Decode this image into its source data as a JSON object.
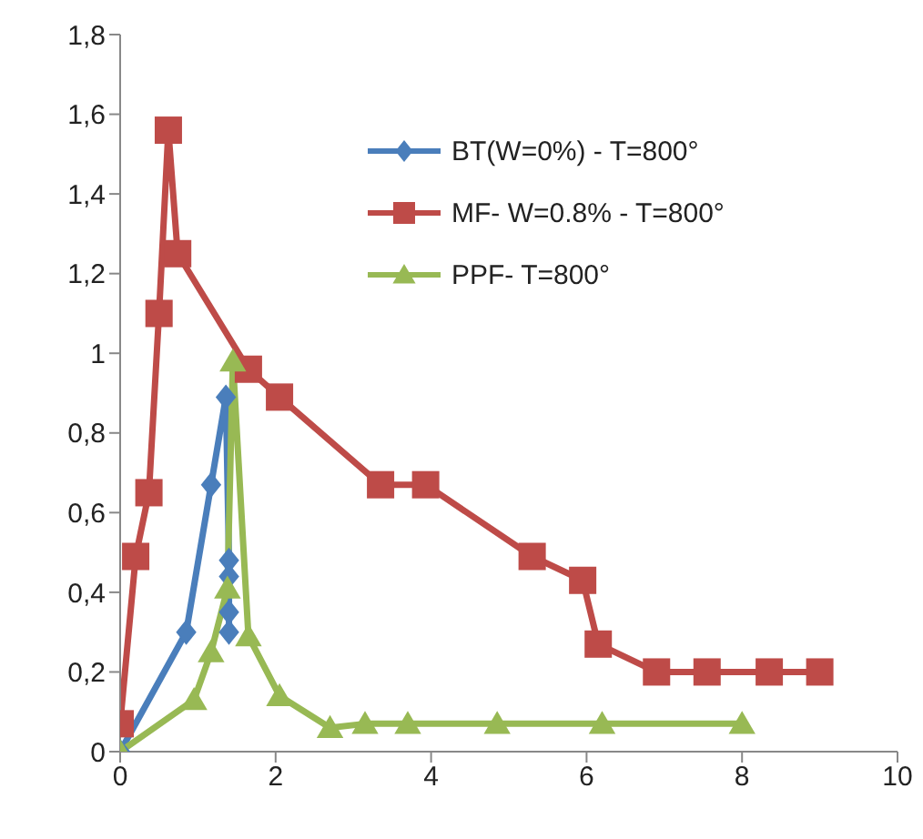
{
  "chart_data": {
    "type": "line",
    "xlim": [
      0,
      10
    ],
    "xticks": [
      0,
      2,
      4,
      6,
      8,
      10
    ],
    "ylim": [
      0,
      1.8
    ],
    "yticks": [
      0,
      {
        "value": 0.2,
        "label": "0,2"
      },
      {
        "value": 0.4,
        "label": "0,4"
      },
      {
        "value": 0.6,
        "label": "0,6"
      },
      {
        "value": 0.8,
        "label": "0,8"
      },
      1,
      {
        "value": 1.2,
        "label": "1,2"
      },
      {
        "value": 1.4,
        "label": "1,4"
      },
      {
        "value": 1.6,
        "label": "1,6"
      },
      {
        "value": 1.8,
        "label": "1,8"
      }
    ],
    "grid": false,
    "legend": "top right",
    "line_style": "solid",
    "series": [
      {
        "name": "BT(W=0%) - T=800°",
        "color": "#4a7ebb",
        "marker": "diamond",
        "x": [
          0,
          0.85,
          1.17,
          1.36,
          1.4,
          1.4,
          1.4,
          1.4
        ],
        "values": [
          0,
          0.3,
          0.67,
          0.89,
          0.48,
          0.44,
          0.35,
          0.3
        ]
      },
      {
        "name": "MF- W=0.8% - T=800°",
        "color": "#be4b48",
        "marker": "square",
        "x": [
          0,
          0.2,
          0.37,
          0.5,
          0.62,
          0.74,
          1.65,
          2.05,
          3.35,
          3.93,
          5.3,
          5.95,
          6.15,
          6.9,
          7.55,
          8.35,
          9
        ],
        "values": [
          0.07,
          0.49,
          0.65,
          1.1,
          1.56,
          1.25,
          0.96,
          0.89,
          0.67,
          0.67,
          0.49,
          0.43,
          0.27,
          0.2,
          0.2,
          0.2,
          0.2
        ]
      },
      {
        "name": "PPF- T=800°",
        "color": "#98b954",
        "marker": "triangle",
        "x": [
          0,
          0.95,
          1.17,
          1.38,
          1.45,
          1.65,
          2.05,
          2.7,
          3.15,
          3.7,
          4.85,
          6.2,
          8
        ],
        "values": [
          0,
          0.13,
          0.25,
          0.41,
          0.98,
          0.29,
          0.14,
          0.06,
          0.07,
          0.07,
          0.07,
          0.07,
          0.07
        ]
      }
    ]
  }
}
